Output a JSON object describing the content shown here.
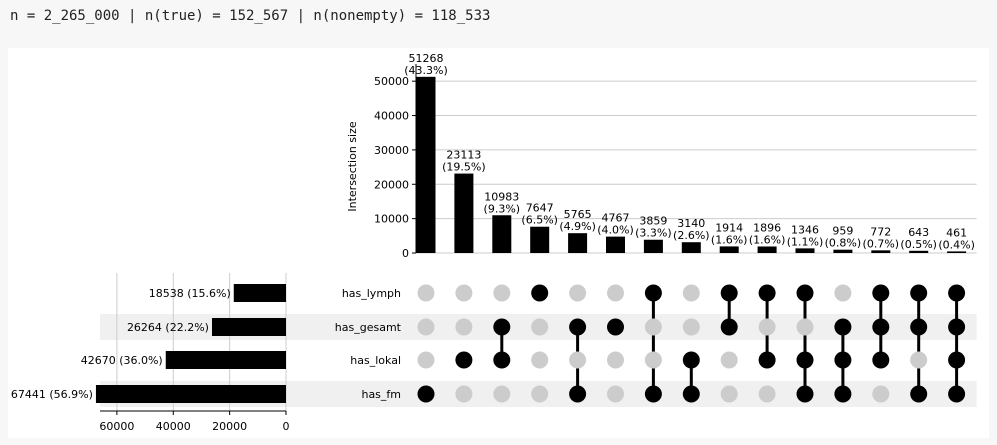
{
  "header": {
    "summary": "n = 2_265_000 | n(true) = 152_567 | n(nonempty) = 118_533"
  },
  "chart_data": {
    "type": "upset",
    "intersections": {
      "ylabel": "Intersection size",
      "ylim": [
        0,
        55000
      ],
      "yticks": [
        0,
        10000,
        20000,
        30000,
        40000,
        50000
      ],
      "ytick_labels": [
        "0",
        "10000",
        "20000",
        "30000",
        "40000",
        "50000"
      ],
      "values": [
        51268,
        23113,
        10983,
        7647,
        5765,
        4767,
        3859,
        3140,
        1914,
        1896,
        1346,
        959,
        772,
        643,
        461
      ],
      "labels": [
        "51268",
        "23113",
        "10983",
        "7647",
        "5765",
        "4767",
        "3859",
        "3140",
        "1914",
        "1896",
        "1346",
        "959",
        "772",
        "643",
        "461"
      ],
      "percents": [
        "(43.3%)",
        "(19.5%)",
        "(9.3%)",
        "(6.5%)",
        "(4.9%)",
        "(4.0%)",
        "(3.3%)",
        "(2.6%)",
        "(1.6%)",
        "(1.6%)",
        "(1.1%)",
        "(0.8%)",
        "(0.7%)",
        "(0.5%)",
        "(0.4%)"
      ]
    },
    "sets": {
      "names": [
        "has_lymph",
        "has_gesamt",
        "has_lokal",
        "has_fm"
      ],
      "sizes": [
        18538,
        26264,
        42670,
        67441
      ],
      "size_labels": [
        "18538 (15.6%)",
        "26264 (22.2%)",
        "42670 (36.0%)",
        "67441 (56.9%)"
      ],
      "xlim": [
        0,
        66000
      ],
      "xticks": [
        60000,
        40000,
        20000,
        0
      ],
      "xtick_labels": [
        "60000",
        "40000",
        "20000",
        "0"
      ]
    },
    "membership": [
      [
        0,
        0,
        0,
        1
      ],
      [
        0,
        0,
        1,
        0
      ],
      [
        0,
        1,
        1,
        0
      ],
      [
        1,
        0,
        0,
        0
      ],
      [
        0,
        1,
        0,
        1
      ],
      [
        0,
        1,
        0,
        0
      ],
      [
        1,
        0,
        0,
        1
      ],
      [
        0,
        0,
        1,
        1
      ],
      [
        1,
        1,
        0,
        0
      ],
      [
        1,
        0,
        1,
        0
      ],
      [
        1,
        0,
        1,
        1
      ],
      [
        0,
        1,
        1,
        1
      ],
      [
        1,
        1,
        1,
        0
      ],
      [
        1,
        1,
        0,
        1
      ],
      [
        1,
        1,
        1,
        1
      ]
    ],
    "colors": {
      "bar": "#000000",
      "dot_active": "#000000",
      "dot_inactive": "#cccccc",
      "grid": "#cccccc",
      "stripe": "#f0f0f0"
    }
  }
}
